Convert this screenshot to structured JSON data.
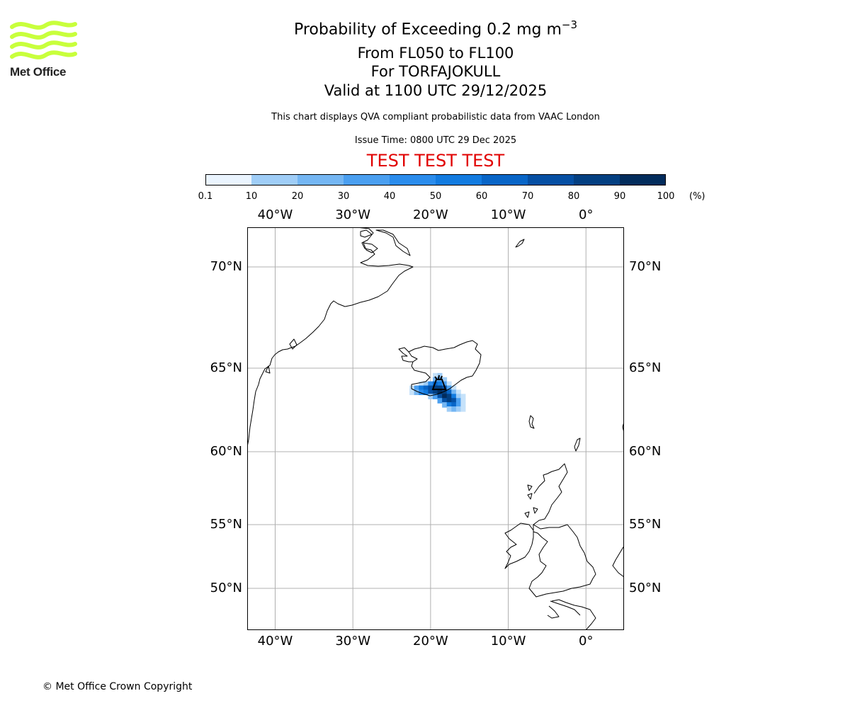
{
  "logo": {
    "text": "Met Office",
    "color": "#c8ff3c"
  },
  "title": {
    "prefix": "Probability of Exceeding 0.2 mg m",
    "exponent": "−3",
    "levels": "From FL050 to FL100",
    "volcano": "For TORFAJOKULL",
    "valid": "Valid at 1100 UTC 29/12/2025"
  },
  "subtitle": "This chart displays QVA compliant probabilistic data from VAAC London",
  "issue_time": "Issue Time: 0800 UTC 29 Dec 2025",
  "test_banner": "TEST TEST TEST",
  "colorbar": {
    "ticks": [
      "0.1",
      "10",
      "20",
      "30",
      "40",
      "50",
      "60",
      "70",
      "80",
      "90",
      "100"
    ],
    "unit": "(%)",
    "colors": [
      "#eaf4fe",
      "#c6e2fa",
      "#9fcdf7",
      "#74b6f3",
      "#4a9ff0",
      "#2a8cec",
      "#127be0",
      "#0865c7",
      "#054fa3",
      "#033f81",
      "#022c5c"
    ]
  },
  "map": {
    "lon_labels": [
      "40°W",
      "30°W",
      "20°W",
      "10°W",
      "0°"
    ],
    "lon_values": [
      -40,
      -30,
      -20,
      -10,
      0
    ],
    "lat_labels": [
      "70°N",
      "65°N",
      "60°N",
      "55°N",
      "50°N"
    ],
    "lat_values": [
      70,
      65,
      60,
      55,
      50
    ],
    "ash_cells": [
      {
        "lon": -19.4,
        "lat": 64.55,
        "p": 10
      },
      {
        "lon": -18.8,
        "lat": 64.55,
        "p": 20
      },
      {
        "lon": -19.4,
        "lat": 64.3,
        "p": 30
      },
      {
        "lon": -18.8,
        "lat": 64.3,
        "p": 40
      },
      {
        "lon": -18.2,
        "lat": 64.3,
        "p": 20
      },
      {
        "lon": -21.2,
        "lat": 64.05,
        "p": 10
      },
      {
        "lon": -20.6,
        "lat": 64.05,
        "p": 20
      },
      {
        "lon": -20.0,
        "lat": 64.05,
        "p": 50
      },
      {
        "lon": -19.4,
        "lat": 64.05,
        "p": 70
      },
      {
        "lon": -18.8,
        "lat": 64.05,
        "p": 60
      },
      {
        "lon": -18.2,
        "lat": 64.05,
        "p": 40
      },
      {
        "lon": -17.6,
        "lat": 64.05,
        "p": 10
      },
      {
        "lon": -22.4,
        "lat": 63.8,
        "p": 10
      },
      {
        "lon": -21.8,
        "lat": 63.8,
        "p": 40
      },
      {
        "lon": -21.2,
        "lat": 63.8,
        "p": 60
      },
      {
        "lon": -20.6,
        "lat": 63.8,
        "p": 70
      },
      {
        "lon": -20.0,
        "lat": 63.8,
        "p": 80
      },
      {
        "lon": -19.4,
        "lat": 63.8,
        "p": 90
      },
      {
        "lon": -18.8,
        "lat": 63.8,
        "p": 90
      },
      {
        "lon": -18.2,
        "lat": 63.8,
        "p": 80
      },
      {
        "lon": -17.6,
        "lat": 63.8,
        "p": 40
      },
      {
        "lon": -17.0,
        "lat": 63.8,
        "p": 10
      },
      {
        "lon": -22.4,
        "lat": 63.55,
        "p": 10
      },
      {
        "lon": -21.8,
        "lat": 63.55,
        "p": 30
      },
      {
        "lon": -21.2,
        "lat": 63.55,
        "p": 50
      },
      {
        "lon": -20.6,
        "lat": 63.55,
        "p": 60
      },
      {
        "lon": -20.0,
        "lat": 63.55,
        "p": 80
      },
      {
        "lon": -19.4,
        "lat": 63.55,
        "p": 90
      },
      {
        "lon": -18.8,
        "lat": 63.55,
        "p": 100
      },
      {
        "lon": -18.2,
        "lat": 63.55,
        "p": 90
      },
      {
        "lon": -17.6,
        "lat": 63.55,
        "p": 70
      },
      {
        "lon": -17.0,
        "lat": 63.55,
        "p": 30
      },
      {
        "lon": -16.4,
        "lat": 63.55,
        "p": 10
      },
      {
        "lon": -20.0,
        "lat": 63.3,
        "p": 20
      },
      {
        "lon": -19.4,
        "lat": 63.3,
        "p": 40
      },
      {
        "lon": -18.8,
        "lat": 63.3,
        "p": 80
      },
      {
        "lon": -18.2,
        "lat": 63.3,
        "p": 100
      },
      {
        "lon": -17.6,
        "lat": 63.3,
        "p": 90
      },
      {
        "lon": -17.0,
        "lat": 63.3,
        "p": 60
      },
      {
        "lon": -16.4,
        "lat": 63.3,
        "p": 20
      },
      {
        "lon": -15.8,
        "lat": 63.3,
        "p": 10
      },
      {
        "lon": -18.8,
        "lat": 63.05,
        "p": 40
      },
      {
        "lon": -18.2,
        "lat": 63.05,
        "p": 80
      },
      {
        "lon": -17.6,
        "lat": 63.05,
        "p": 90
      },
      {
        "lon": -17.0,
        "lat": 63.05,
        "p": 80
      },
      {
        "lon": -16.4,
        "lat": 63.05,
        "p": 40
      },
      {
        "lon": -15.8,
        "lat": 63.05,
        "p": 10
      },
      {
        "lon": -18.2,
        "lat": 62.8,
        "p": 30
      },
      {
        "lon": -17.6,
        "lat": 62.8,
        "p": 60
      },
      {
        "lon": -17.0,
        "lat": 62.8,
        "p": 70
      },
      {
        "lon": -16.4,
        "lat": 62.8,
        "p": 40
      },
      {
        "lon": -15.8,
        "lat": 62.8,
        "p": 10
      },
      {
        "lon": -17.6,
        "lat": 62.55,
        "p": 20
      },
      {
        "lon": -17.0,
        "lat": 62.55,
        "p": 30
      },
      {
        "lon": -16.4,
        "lat": 62.55,
        "p": 20
      },
      {
        "lon": -15.8,
        "lat": 62.55,
        "p": 10
      }
    ]
  },
  "copyright": "© Met Office Crown Copyright"
}
